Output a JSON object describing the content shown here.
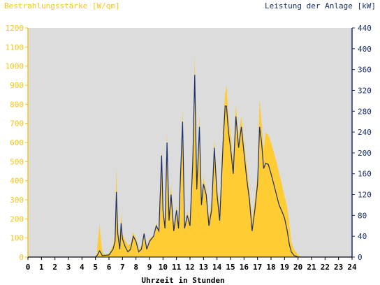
{
  "chart_data": {
    "type": "area",
    "ylabel_left": "Bestrahlungsstärke [W/qm]",
    "ylabel_right": "Leistung der Anlage [kW]",
    "xlabel": "Uhrzeit in Stunden",
    "xlim": [
      0,
      24
    ],
    "ylim_left": [
      0,
      1200
    ],
    "ylim_right": [
      0,
      440
    ],
    "x_ticks": [
      "0",
      "1",
      "2",
      "3",
      "4",
      "5",
      "6",
      "7",
      "8",
      "9",
      "10",
      "11",
      "12",
      "13",
      "14",
      "15",
      "16",
      "17",
      "18",
      "19",
      "20",
      "21",
      "22",
      "23",
      "24"
    ],
    "left_ticks": [
      "0",
      "100",
      "200",
      "300",
      "400",
      "500",
      "600",
      "700",
      "800",
      "900",
      "1000",
      "1100",
      "1200"
    ],
    "right_ticks": [
      "0",
      "40",
      "80",
      "120",
      "160",
      "200",
      "240",
      "280",
      "320",
      "360",
      "400",
      "440"
    ],
    "grid": false,
    "colors": {
      "irradiance": "#ffcc33",
      "power": "#1a2f6e",
      "plot_bg": "#dcdcdc",
      "left_axis": "#f5c518",
      "right_axis": "#1a2f6e"
    },
    "series": [
      {
        "name": "Bestrahlungsstärke [W/qm]",
        "axis": "left",
        "points": [
          [
            0,
            0
          ],
          [
            5.0,
            0
          ],
          [
            5.1,
            20
          ],
          [
            5.2,
            100
          ],
          [
            5.3,
            170
          ],
          [
            5.4,
            90
          ],
          [
            5.5,
            30
          ],
          [
            5.7,
            10
          ],
          [
            6.0,
            20
          ],
          [
            6.3,
            60
          ],
          [
            6.45,
            120
          ],
          [
            6.55,
            470
          ],
          [
            6.65,
            180
          ],
          [
            6.8,
            60
          ],
          [
            6.9,
            230
          ],
          [
            7.0,
            120
          ],
          [
            7.2,
            90
          ],
          [
            7.4,
            60
          ],
          [
            7.6,
            70
          ],
          [
            7.8,
            130
          ],
          [
            8.0,
            100
          ],
          [
            8.2,
            40
          ],
          [
            8.4,
            60
          ],
          [
            8.6,
            130
          ],
          [
            8.8,
            40
          ],
          [
            9.0,
            100
          ],
          [
            9.3,
            110
          ],
          [
            9.5,
            180
          ],
          [
            9.7,
            130
          ],
          [
            9.9,
            560
          ],
          [
            10.0,
            280
          ],
          [
            10.15,
            180
          ],
          [
            10.3,
            650
          ],
          [
            10.45,
            220
          ],
          [
            10.6,
            380
          ],
          [
            10.8,
            160
          ],
          [
            11.0,
            270
          ],
          [
            11.15,
            150
          ],
          [
            11.3,
            420
          ],
          [
            11.45,
            780
          ],
          [
            11.6,
            150
          ],
          [
            11.8,
            240
          ],
          [
            12.0,
            180
          ],
          [
            12.2,
            500
          ],
          [
            12.35,
            1060
          ],
          [
            12.5,
            380
          ],
          [
            12.7,
            740
          ],
          [
            12.85,
            300
          ],
          [
            13.0,
            420
          ],
          [
            13.2,
            350
          ],
          [
            13.4,
            200
          ],
          [
            13.6,
            300
          ],
          [
            13.8,
            620
          ],
          [
            14.0,
            380
          ],
          [
            14.2,
            250
          ],
          [
            14.45,
            680
          ],
          [
            14.6,
            860
          ],
          [
            14.7,
            900
          ],
          [
            14.85,
            730
          ],
          [
            15.0,
            650
          ],
          [
            15.2,
            500
          ],
          [
            15.4,
            800
          ],
          [
            15.6,
            620
          ],
          [
            15.8,
            740
          ],
          [
            16.0,
            600
          ],
          [
            16.2,
            480
          ],
          [
            16.4,
            350
          ],
          [
            16.6,
            200
          ],
          [
            16.8,
            300
          ],
          [
            17.0,
            430
          ],
          [
            17.15,
            830
          ],
          [
            17.3,
            700
          ],
          [
            17.45,
            560
          ],
          [
            17.6,
            650
          ],
          [
            17.8,
            640
          ],
          [
            18.0,
            600
          ],
          [
            18.2,
            550
          ],
          [
            18.4,
            500
          ],
          [
            18.6,
            440
          ],
          [
            18.8,
            380
          ],
          [
            19.0,
            320
          ],
          [
            19.2,
            260
          ],
          [
            19.35,
            180
          ],
          [
            19.5,
            80
          ],
          [
            19.7,
            40
          ],
          [
            20.0,
            10
          ],
          [
            20.3,
            0
          ],
          [
            24,
            0
          ]
        ]
      },
      {
        "name": "Leistung der Anlage [kW]",
        "axis": "right",
        "points": [
          [
            0,
            0
          ],
          [
            5.0,
            0
          ],
          [
            5.15,
            4
          ],
          [
            5.3,
            12
          ],
          [
            5.4,
            8
          ],
          [
            5.5,
            3
          ],
          [
            6.0,
            4
          ],
          [
            6.3,
            15
          ],
          [
            6.45,
            30
          ],
          [
            6.55,
            125
          ],
          [
            6.65,
            45
          ],
          [
            6.8,
            15
          ],
          [
            6.9,
            65
          ],
          [
            7.0,
            35
          ],
          [
            7.2,
            20
          ],
          [
            7.4,
            10
          ],
          [
            7.6,
            15
          ],
          [
            7.8,
            40
          ],
          [
            8.0,
            30
          ],
          [
            8.2,
            10
          ],
          [
            8.4,
            15
          ],
          [
            8.6,
            45
          ],
          [
            8.8,
            15
          ],
          [
            9.0,
            30
          ],
          [
            9.3,
            40
          ],
          [
            9.5,
            60
          ],
          [
            9.7,
            50
          ],
          [
            9.9,
            195
          ],
          [
            10.0,
            90
          ],
          [
            10.15,
            55
          ],
          [
            10.3,
            220
          ],
          [
            10.45,
            70
          ],
          [
            10.6,
            120
          ],
          [
            10.8,
            50
          ],
          [
            11.0,
            90
          ],
          [
            11.15,
            55
          ],
          [
            11.3,
            160
          ],
          [
            11.45,
            260
          ],
          [
            11.6,
            55
          ],
          [
            11.8,
            80
          ],
          [
            12.0,
            60
          ],
          [
            12.2,
            180
          ],
          [
            12.35,
            350
          ],
          [
            12.5,
            130
          ],
          [
            12.7,
            250
          ],
          [
            12.85,
            100
          ],
          [
            13.0,
            140
          ],
          [
            13.2,
            120
          ],
          [
            13.4,
            60
          ],
          [
            13.6,
            90
          ],
          [
            13.8,
            210
          ],
          [
            14.0,
            120
          ],
          [
            14.2,
            70
          ],
          [
            14.45,
            220
          ],
          [
            14.6,
            290
          ],
          [
            14.7,
            290
          ],
          [
            14.85,
            240
          ],
          [
            15.0,
            210
          ],
          [
            15.2,
            160
          ],
          [
            15.4,
            270
          ],
          [
            15.6,
            210
          ],
          [
            15.8,
            250
          ],
          [
            16.0,
            200
          ],
          [
            16.2,
            150
          ],
          [
            16.4,
            110
          ],
          [
            16.6,
            50
          ],
          [
            16.8,
            90
          ],
          [
            17.0,
            140
          ],
          [
            17.15,
            250
          ],
          [
            17.3,
            220
          ],
          [
            17.45,
            170
          ],
          [
            17.6,
            180
          ],
          [
            17.8,
            178
          ],
          [
            18.0,
            160
          ],
          [
            18.2,
            140
          ],
          [
            18.4,
            120
          ],
          [
            18.6,
            100
          ],
          [
            18.8,
            88
          ],
          [
            19.0,
            75
          ],
          [
            19.2,
            50
          ],
          [
            19.35,
            25
          ],
          [
            19.5,
            10
          ],
          [
            19.7,
            3
          ],
          [
            20.0,
            0
          ],
          [
            24,
            0
          ]
        ]
      }
    ]
  }
}
